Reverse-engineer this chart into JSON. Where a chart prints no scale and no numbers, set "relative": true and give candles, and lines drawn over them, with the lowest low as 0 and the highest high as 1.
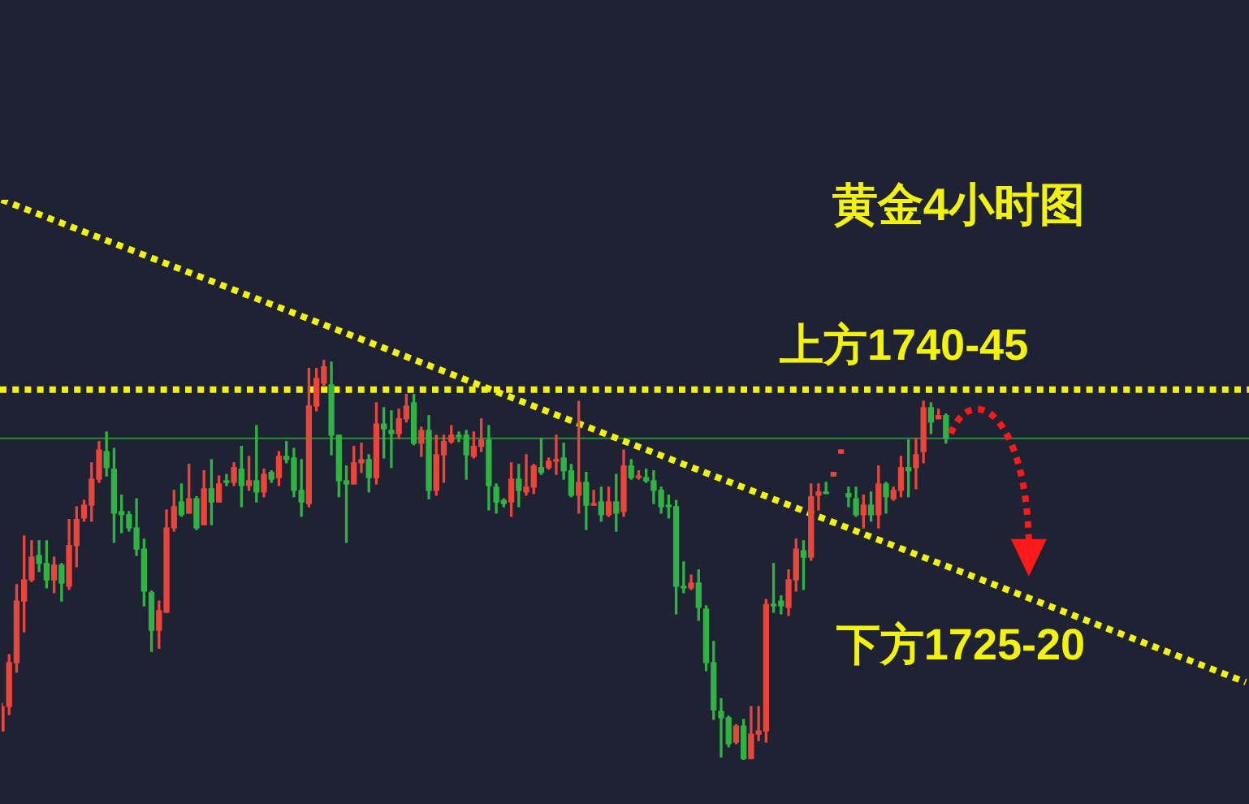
{
  "chart_data": {
    "type": "candlestick",
    "title": "黄金4小时图",
    "relative": true,
    "categories": [
      null,
      null,
      null,
      null,
      null,
      null,
      null,
      null,
      null,
      null,
      null,
      null,
      null,
      null,
      null,
      null,
      null,
      null,
      null,
      null,
      null,
      null,
      null,
      null,
      null,
      null,
      null,
      null,
      null,
      null,
      null,
      null,
      null,
      null,
      null,
      null,
      null,
      null,
      null,
      null,
      null,
      null,
      null,
      null,
      null,
      null,
      null,
      null,
      null,
      null,
      null,
      null,
      null,
      null,
      null,
      null,
      null,
      null,
      null,
      null,
      null,
      null,
      null,
      null,
      null,
      null,
      null,
      null,
      null,
      null,
      null,
      null,
      null,
      null,
      null,
      null,
      null,
      null,
      null,
      null,
      null,
      null,
      null,
      null,
      null,
      null,
      null,
      null,
      null,
      null,
      null,
      null,
      null,
      null,
      null,
      null,
      null,
      null,
      null,
      null,
      null,
      null,
      null,
      null,
      null,
      null,
      null,
      null,
      null,
      null,
      null,
      null,
      null,
      null,
      null,
      null,
      null,
      null,
      null,
      null,
      null,
      null,
      null,
      null,
      null,
      null,
      null,
      null,
      null,
      null,
      null,
      null,
      null,
      null,
      null,
      null,
      null,
      null,
      null,
      null,
      null,
      null,
      null,
      null,
      null,
      null,
      null,
      null,
      null,
      null,
      null,
      null,
      null,
      null,
      null,
      null,
      null,
      null,
      null,
      null,
      null,
      null,
      null,
      null,
      null,
      null,
      null
    ],
    "ohlc": [
      [
        0.073,
        0.142,
        0.073,
        0.134
      ],
      [
        0.134,
        0.264,
        0.114,
        0.244
      ],
      [
        0.244,
        0.439,
        0.22,
        0.398
      ],
      [
        0.398,
        0.561,
        0.321,
        0.451
      ],
      [
        0.451,
        0.549,
        0.447,
        0.508
      ],
      [
        0.512,
        0.549,
        0.472,
        0.492
      ],
      [
        0.492,
        0.549,
        0.431,
        0.451
      ],
      [
        0.451,
        0.508,
        0.419,
        0.488
      ],
      [
        0.488,
        0.492,
        0.398,
        0.443
      ],
      [
        0.435,
        0.602,
        0.427,
        0.537
      ],
      [
        0.537,
        0.634,
        0.484,
        0.602
      ],
      [
        0.606,
        0.65,
        0.598,
        0.638
      ],
      [
        0.638,
        0.744,
        0.598,
        0.703
      ],
      [
        0.703,
        0.797,
        0.695,
        0.776
      ],
      [
        0.772,
        0.821,
        0.711,
        0.732
      ],
      [
        0.728,
        0.78,
        0.545,
        0.618
      ],
      [
        0.622,
        0.663,
        0.569,
        0.614
      ],
      [
        0.614,
        0.622,
        0.573,
        0.581
      ],
      [
        0.581,
        0.654,
        0.512,
        0.528
      ],
      [
        0.528,
        0.553,
        0.386,
        0.423
      ],
      [
        0.419,
        0.423,
        0.272,
        0.325
      ],
      [
        0.325,
        0.398,
        0.28,
        0.374
      ],
      [
        0.37,
        0.626,
        0.37,
        0.581
      ],
      [
        0.581,
        0.675,
        0.573,
        0.634
      ],
      [
        0.646,
        0.691,
        0.61,
        0.614
      ],
      [
        0.618,
        0.74,
        0.618,
        0.654
      ],
      [
        0.654,
        0.659,
        0.577,
        0.581
      ],
      [
        0.589,
        0.724,
        0.589,
        0.679
      ],
      [
        0.679,
        0.752,
        0.589,
        0.646
      ],
      [
        0.646,
        0.711,
        0.646,
        0.691
      ],
      [
        0.699,
        0.715,
        0.687,
        0.695
      ],
      [
        0.695,
        0.744,
        0.687,
        0.732
      ],
      [
        0.728,
        0.785,
        0.634,
        0.687
      ],
      [
        0.687,
        0.76,
        0.675,
        0.699
      ],
      [
        0.699,
        0.837,
        0.646,
        0.671
      ],
      [
        0.671,
        0.728,
        0.659,
        0.715
      ],
      [
        0.72,
        0.724,
        0.695,
        0.703
      ],
      [
        0.707,
        0.772,
        0.687,
        0.76
      ],
      [
        0.76,
        0.797,
        0.744,
        0.752
      ],
      [
        0.756,
        0.78,
        0.659,
        0.675
      ],
      [
        0.675,
        0.752,
        0.61,
        0.646
      ],
      [
        0.642,
        0.98,
        0.634,
        0.886
      ],
      [
        0.886,
        0.98,
        0.874,
        0.955
      ],
      [
        0.943,
        1,
        0.935,
        0.984
      ],
      [
        0.939,
        0.996,
        0.764,
        0.813
      ],
      [
        0.813,
        0.813,
        0.659,
        0.699
      ],
      [
        0.699,
        0.736,
        0.545,
        0.691
      ],
      [
        0.691,
        0.785,
        0.691,
        0.744
      ],
      [
        0.744,
        0.793,
        0.72,
        0.752
      ],
      [
        0.752,
        0.764,
        0.671,
        0.707
      ],
      [
        0.707,
        0.894,
        0.691,
        0.841
      ],
      [
        0.841,
        0.882,
        0.756,
        0.829
      ],
      [
        0.825,
        0.874,
        0.732,
        0.817
      ],
      [
        0.817,
        0.878,
        0.805,
        0.854
      ],
      [
        0.854,
        0.915,
        0.846,
        0.886
      ],
      [
        0.894,
        0.915,
        0.789,
        0.793
      ],
      [
        0.793,
        0.833,
        0.76,
        0.825
      ],
      [
        0.825,
        0.862,
        0.654,
        0.675
      ],
      [
        0.675,
        0.813,
        0.663,
        0.764
      ],
      [
        0.764,
        0.813,
        0.695,
        0.797
      ],
      [
        0.797,
        0.837,
        0.793,
        0.813
      ],
      [
        0.813,
        0.821,
        0.797,
        0.809
      ],
      [
        0.813,
        0.825,
        0.703,
        0.764
      ],
      [
        0.76,
        0.821,
        0.756,
        0.785
      ],
      [
        0.785,
        0.854,
        0.772,
        0.801
      ],
      [
        0.801,
        0.837,
        0.626,
        0.687
      ],
      [
        0.683,
        0.691,
        0.618,
        0.646
      ],
      [
        0.65,
        0.654,
        0.634,
        0.642
      ],
      [
        0.646,
        0.744,
        0.61,
        0.703
      ],
      [
        0.703,
        0.74,
        0.634,
        0.675
      ],
      [
        0.671,
        0.764,
        0.663,
        0.683
      ],
      [
        0.683,
        0.74,
        0.667,
        0.736
      ],
      [
        0.732,
        0.805,
        0.715,
        0.72
      ],
      [
        0.732,
        0.756,
        0.728,
        0.748
      ],
      [
        0.748,
        0.813,
        0.715,
        0.752
      ],
      [
        0.756,
        0.793,
        0.703,
        0.724
      ],
      [
        0.724,
        0.74,
        0.659,
        0.663
      ],
      [
        0.663,
        0.898,
        0.618,
        0.695
      ],
      [
        0.695,
        0.72,
        0.577,
        0.638
      ],
      [
        0.638,
        0.675,
        0.638,
        0.642
      ],
      [
        0.646,
        0.683,
        0.598,
        0.614
      ],
      [
        0.614,
        0.683,
        0.61,
        0.646
      ],
      [
        0.646,
        0.715,
        0.573,
        0.618
      ],
      [
        0.622,
        0.776,
        0.61,
        0.736
      ],
      [
        0.736,
        0.752,
        0.703,
        0.707
      ],
      [
        0.707,
        0.724,
        0.703,
        0.711
      ],
      [
        0.707,
        0.728,
        0.695,
        0.699
      ],
      [
        0.699,
        0.724,
        0.642,
        0.675
      ],
      [
        0.675,
        0.683,
        0.618,
        0.634
      ],
      [
        0.638,
        0.663,
        0.606,
        0.634
      ],
      [
        0.634,
        0.65,
        0.366,
        0.435
      ],
      [
        0.435,
        0.496,
        0.419,
        0.431
      ],
      [
        0.431,
        0.463,
        0.427,
        0.443
      ],
      [
        0.443,
        0.476,
        0.35,
        0.382
      ],
      [
        0.378,
        0.386,
        0.224,
        0.244
      ],
      [
        0.244,
        0.297,
        0.102,
        0.126
      ],
      [
        0.122,
        0.154,
        0.008,
        0.106
      ],
      [
        0.106,
        0.11,
        0.033,
        0.041
      ],
      [
        0.045,
        0.089,
        0.041,
        0.085
      ],
      [
        0.085,
        0.102,
        0,
        0.004
      ],
      [
        0.004,
        0.134,
        0.004,
        0.065
      ],
      [
        0.065,
        0.134,
        0.049,
        0.073
      ],
      [
        0.073,
        0.402,
        0.045,
        0.39
      ],
      [
        0.39,
        0.492,
        0.37,
        0.386
      ],
      [
        0.398,
        0.411,
        0.366,
        0.386
      ],
      [
        0.382,
        0.476,
        0.362,
        0.451
      ],
      [
        0.451,
        0.553,
        0.423,
        0.528
      ],
      [
        0.524,
        0.549,
        0.427,
        0.508
      ],
      [
        0.508,
        0.691,
        0.5,
        0.659
      ],
      [
        0.663,
        0.691,
        0.626,
        0.671
      ],
      [
        0.671,
        0.695,
        0.667,
        0.667
      ],
      [
        0.711,
        0.72,
        0.711,
        0.72
      ],
      [
        0.768,
        0.776,
        0.768,
        0.776
      ],
      [
        0.667,
        0.683,
        0.634,
        0.659
      ],
      [
        0.654,
        0.683,
        0.61,
        0.614
      ],
      [
        0.614,
        0.663,
        0.581,
        0.638
      ],
      [
        0.638,
        0.671,
        0.598,
        0.614
      ],
      [
        0.614,
        0.736,
        0.581,
        0.691
      ],
      [
        0.691,
        0.695,
        0.618,
        0.659
      ],
      [
        0.654,
        0.683,
        0.65,
        0.675
      ],
      [
        0.675,
        0.76,
        0.659,
        0.732
      ],
      [
        0.732,
        0.801,
        0.659,
        0.724
      ],
      [
        0.732,
        0.805,
        0.679,
        0.764
      ],
      [
        0.772,
        0.898,
        0.744,
        0.882
      ],
      [
        0.882,
        0.894,
        0.817,
        0.846
      ],
      [
        0.854,
        0.878,
        0.854,
        0.862
      ],
      [
        0.862,
        0.866,
        0.793,
        0.805
      ],
      null,
      null,
      null,
      null,
      null,
      null,
      null,
      null,
      null,
      null,
      null,
      null,
      null,
      null,
      null,
      null,
      null,
      null,
      null,
      null,
      null,
      null,
      null,
      null,
      null,
      null,
      null,
      null,
      null,
      null,
      null,
      null,
      null,
      null,
      null,
      null,
      null,
      null,
      null,
      null
    ],
    "colors": [
      "#e8453c",
      "#e8453c",
      "#e8453c",
      "#e8453c",
      "#e8453c",
      "#2fb344",
      "#2fb344",
      "#e8453c",
      "#2fb344",
      "#e8453c",
      "#e8453c",
      "#e8453c",
      "#e8453c",
      "#e8453c",
      "#2fb344",
      "#2fb344",
      "#2fb344",
      "#2fb344",
      "#2fb344",
      "#2fb344",
      "#2fb344",
      "#e8453c",
      "#e8453c",
      "#e8453c",
      "#2fb344",
      "#e8453c",
      "#2fb344",
      "#e8453c",
      "#2fb344",
      "#e8453c",
      "#2fb344",
      "#e8453c",
      "#2fb344",
      "#e8453c",
      "#2fb344",
      "#e8453c",
      "#2fb344",
      "#e8453c",
      "#2fb344",
      "#2fb344",
      "#2fb344",
      "#e8453c",
      "#e8453c",
      "#e8453c",
      "#2fb344",
      "#2fb344",
      "#2fb344",
      "#e8453c",
      "#e8453c",
      "#2fb344",
      "#e8453c",
      "#2fb344",
      "#2fb344",
      "#e8453c",
      "#e8453c",
      "#2fb344",
      "#e8453c",
      "#2fb344",
      "#e8453c",
      "#e8453c",
      "#e8453c",
      "#2fb344",
      "#2fb344",
      "#e8453c",
      "#e8453c",
      "#2fb344",
      "#2fb344",
      "#2fb344",
      "#e8453c",
      "#2fb344",
      "#e8453c",
      "#e8453c",
      "#2fb344",
      "#e8453c",
      "#e8453c",
      "#2fb344",
      "#2fb344",
      "#e8453c",
      "#2fb344",
      "#e8453c",
      "#2fb344",
      "#e8453c",
      "#2fb344",
      "#e8453c",
      "#2fb344",
      "#e8453c",
      "#2fb344",
      "#2fb344",
      "#2fb344",
      "#2fb344",
      "#2fb344",
      "#2fb344",
      "#e8453c",
      "#2fb344",
      "#2fb344",
      "#2fb344",
      "#2fb344",
      "#2fb344",
      "#e8453c",
      "#2fb344",
      "#e8453c",
      "#e8453c",
      "#e8453c",
      "#2fb344",
      "#2fb344",
      "#e8453c",
      "#e8453c",
      "#2fb344",
      "#e8453c",
      "#e8453c",
      "#2fb344",
      "#e8453c",
      "#e8453c",
      "#2fb344",
      "#2fb344",
      "#e8453c",
      "#2fb344",
      "#e8453c",
      "#2fb344",
      "#e8453c",
      "#e8453c",
      "#2fb344",
      "#e8453c",
      "#e8453c",
      "#2fb344",
      "#e8453c",
      "#2fb344",
      null,
      null,
      null,
      null,
      null,
      null,
      null,
      null,
      null,
      null,
      null,
      null,
      null,
      null,
      null,
      null,
      null,
      null,
      null,
      null,
      null,
      null,
      null,
      null,
      null,
      null,
      null,
      null,
      null,
      null,
      null,
      null,
      null,
      null,
      null,
      null,
      null,
      null,
      null,
      null
    ],
    "series": [
      {
        "type": "line",
        "name": "下方1725-20",
        "color": "#f2f20a",
        "line_style": "dotted",
        "values": [
          1.402,
          null,
          null,
          null,
          null,
          null,
          null,
          null,
          null,
          null,
          null,
          null,
          null,
          null,
          null,
          null,
          null,
          null,
          null,
          null,
          null,
          null,
          null,
          null,
          null,
          null,
          null,
          null,
          null,
          null,
          null,
          null,
          null,
          null,
          null,
          null,
          null,
          null,
          null,
          null,
          null,
          null,
          null,
          null,
          null,
          null,
          null,
          null,
          null,
          null,
          null,
          null,
          null,
          null,
          null,
          null,
          null,
          null,
          null,
          null,
          null,
          null,
          null,
          null,
          null,
          null,
          null,
          null,
          null,
          null,
          null,
          null,
          null,
          null,
          null,
          null,
          null,
          null,
          null,
          null,
          null,
          null,
          null,
          null,
          null,
          null,
          null,
          null,
          null,
          null,
          null,
          null,
          null,
          null,
          null,
          null,
          null,
          null,
          null,
          null,
          null,
          null,
          null,
          null,
          null,
          null,
          null,
          null,
          null,
          null,
          null,
          null,
          null,
          null,
          null,
          null,
          null,
          null,
          null,
          null,
          null,
          null,
          null,
          null,
          null,
          null,
          null,
          null,
          null,
          null,
          null,
          null,
          null,
          null,
          null,
          null,
          null,
          null,
          null,
          null,
          null,
          null,
          null,
          null,
          null,
          null,
          null,
          null,
          null,
          null,
          null,
          null,
          null,
          null,
          null,
          null,
          null,
          null,
          null,
          null,
          null,
          null,
          null,
          null,
          null,
          null,
          0.195
        ]
      }
    ],
    "ref_lines": [
      {
        "axis": "y",
        "value": 0.927,
        "label": "上方1740-45",
        "color": "#f2f20a",
        "line_style": "dotted"
      },
      {
        "axis": "y",
        "value": 0.805,
        "color": "#2a8c3a",
        "line_style": "solid"
      }
    ]
  }
}
